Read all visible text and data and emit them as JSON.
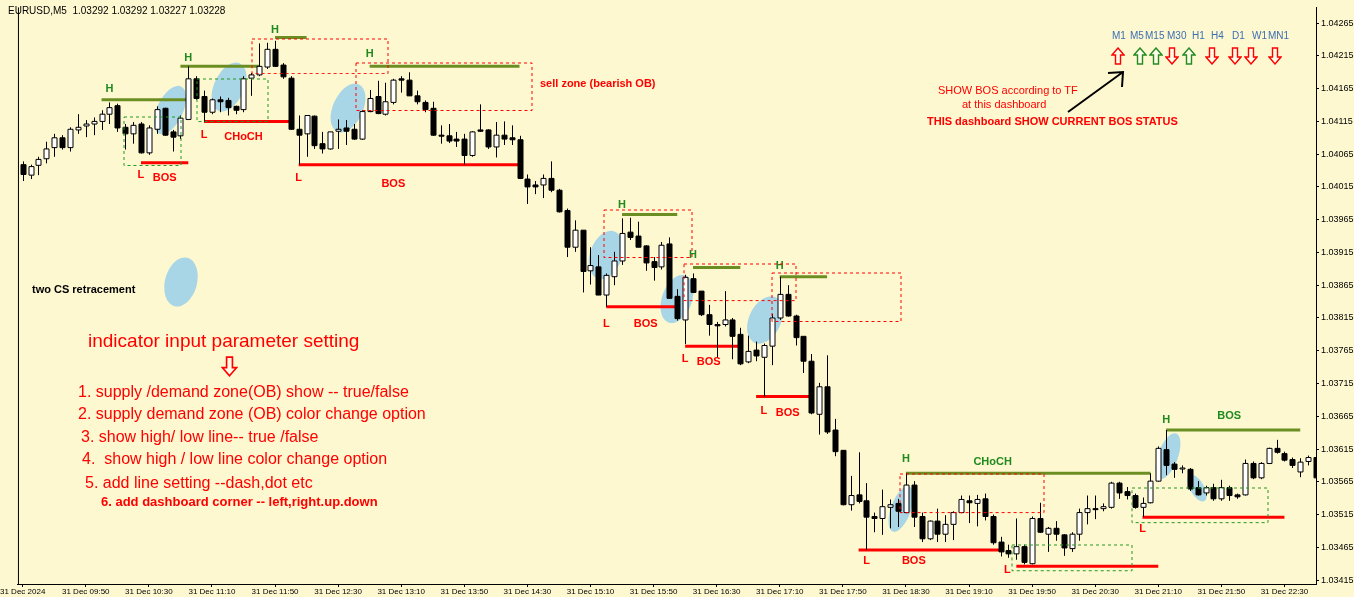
{
  "chart_data": {
    "type": "candlestick",
    "title": "EURUSD,M5  1.03292 1.03292 1.03227 1.03228",
    "x": [
      "2024-12-31T09:10",
      "2024-12-31T09:15",
      "2024-12-31T09:20",
      "2024-12-31T09:25",
      "2024-12-31T09:30",
      "2024-12-31T09:35",
      "2024-12-31T09:40",
      "2024-12-31T09:45",
      "2024-12-31T09:50",
      "2024-12-31T09:55",
      "2024-12-31T10:00",
      "2024-12-31T10:05",
      "2024-12-31T10:10",
      "2024-12-31T10:15",
      "2024-12-31T10:20",
      "2024-12-31T10:25",
      "2024-12-31T10:30",
      "2024-12-31T10:35",
      "2024-12-31T10:40",
      "2024-12-31T10:45",
      "2024-12-31T10:50",
      "2024-12-31T10:55",
      "2024-12-31T11:00",
      "2024-12-31T11:05",
      "2024-12-31T11:10",
      "2024-12-31T11:15",
      "2024-12-31T11:20",
      "2024-12-31T11:25",
      "2024-12-31T11:30",
      "2024-12-31T11:35",
      "2024-12-31T11:40",
      "2024-12-31T11:45",
      "2024-12-31T11:50",
      "2024-12-31T11:55",
      "2024-12-31T12:00",
      "2024-12-31T12:05",
      "2024-12-31T12:10",
      "2024-12-31T12:15",
      "2024-12-31T12:20",
      "2024-12-31T12:25",
      "2024-12-31T12:30",
      "2024-12-31T12:35",
      "2024-12-31T12:40",
      "2024-12-31T12:45",
      "2024-12-31T12:50",
      "2024-12-31T12:55",
      "2024-12-31T13:00",
      "2024-12-31T13:05",
      "2024-12-31T13:10",
      "2024-12-31T13:15",
      "2024-12-31T13:20",
      "2024-12-31T13:25",
      "2024-12-31T13:30",
      "2024-12-31T13:35",
      "2024-12-31T13:40",
      "2024-12-31T13:45",
      "2024-12-31T13:50",
      "2024-12-31T13:55",
      "2024-12-31T14:00",
      "2024-12-31T14:05",
      "2024-12-31T14:10",
      "2024-12-31T14:15",
      "2024-12-31T14:20",
      "2024-12-31T14:25",
      "2024-12-31T14:30",
      "2024-12-31T14:35",
      "2024-12-31T14:40",
      "2024-12-31T14:45",
      "2024-12-31T14:50",
      "2024-12-31T14:55",
      "2024-12-31T15:00",
      "2024-12-31T15:05",
      "2024-12-31T15:10",
      "2024-12-31T15:15",
      "2024-12-31T15:20",
      "2024-12-31T15:25",
      "2024-12-31T15:30",
      "2024-12-31T15:35",
      "2024-12-31T15:40",
      "2024-12-31T15:45",
      "2024-12-31T15:50",
      "2024-12-31T15:55",
      "2024-12-31T16:00",
      "2024-12-31T16:05",
      "2024-12-31T16:10",
      "2024-12-31T16:15",
      "2024-12-31T16:20",
      "2024-12-31T16:25",
      "2024-12-31T16:30",
      "2024-12-31T16:35",
      "2024-12-31T16:40",
      "2024-12-31T16:45",
      "2024-12-31T16:50",
      "2024-12-31T16:55",
      "2024-12-31T17:00",
      "2024-12-31T17:05",
      "2024-12-31T17:10",
      "2024-12-31T17:15",
      "2024-12-31T17:20",
      "2024-12-31T17:25",
      "2024-12-31T17:30",
      "2024-12-31T17:35",
      "2024-12-31T17:40",
      "2024-12-31T17:45",
      "2024-12-31T17:50",
      "2024-12-31T17:55",
      "2024-12-31T18:00",
      "2024-12-31T18:05",
      "2024-12-31T18:10",
      "2024-12-31T18:15",
      "2024-12-31T18:20",
      "2024-12-31T18:25",
      "2024-12-31T18:30",
      "2024-12-31T18:35",
      "2024-12-31T18:40",
      "2024-12-31T18:45",
      "2024-12-31T18:50",
      "2024-12-31T18:55",
      "2024-12-31T19:00",
      "2024-12-31T19:05",
      "2024-12-31T19:10",
      "2024-12-31T19:15",
      "2024-12-31T19:20",
      "2024-12-31T19:25",
      "2024-12-31T19:30",
      "2024-12-31T19:35",
      "2024-12-31T19:40",
      "2024-12-31T19:45",
      "2024-12-31T19:50",
      "2024-12-31T19:55",
      "2024-12-31T20:00",
      "2024-12-31T20:05",
      "2024-12-31T20:10",
      "2024-12-31T20:15",
      "2024-12-31T20:20",
      "2024-12-31T20:25",
      "2024-12-31T20:30",
      "2024-12-31T20:35",
      "2024-12-31T20:40",
      "2024-12-31T20:45",
      "2024-12-31T20:50",
      "2024-12-31T20:55",
      "2024-12-31T21:00",
      "2024-12-31T21:05",
      "2024-12-31T21:10",
      "2024-12-31T21:15",
      "2024-12-31T21:20",
      "2024-12-31T21:25",
      "2024-12-31T21:30",
      "2024-12-31T21:35",
      "2024-12-31T21:40",
      "2024-12-31T21:45",
      "2024-12-31T21:50",
      "2024-12-31T21:55",
      "2024-12-31T22:00",
      "2024-12-31T22:05",
      "2024-12-31T22:10",
      "2024-12-31T22:15",
      "2024-12-31T22:20",
      "2024-12-31T22:25",
      "2024-12-31T22:30",
      "2024-12-31T22:35",
      "2024-12-31T22:40",
      "2024-12-31T22:45",
      "2024-12-31T22:50"
    ],
    "ohlc": [
      [
        1.04049,
        1.04054,
        1.04024,
        1.04034
      ],
      [
        1.04033,
        1.04049,
        1.04027,
        1.04046
      ],
      [
        1.04048,
        1.04061,
        1.04033,
        1.04057
      ],
      [
        1.04058,
        1.04084,
        1.04051,
        1.04073
      ],
      [
        1.04075,
        1.04096,
        1.04061,
        1.0409
      ],
      [
        1.0409,
        1.04094,
        1.04072,
        1.04075
      ],
      [
        1.04075,
        1.04106,
        1.04069,
        1.04103
      ],
      [
        1.04102,
        1.04126,
        1.04096,
        1.04106
      ],
      [
        1.04108,
        1.04117,
        1.04091,
        1.04111
      ],
      [
        1.04111,
        1.04121,
        1.04094,
        1.04115
      ],
      [
        1.04115,
        1.04132,
        1.04102,
        1.04126
      ],
      [
        1.04126,
        1.04144,
        1.04111,
        1.04136
      ],
      [
        1.04139,
        1.04142,
        1.04099,
        1.04105
      ],
      [
        1.04106,
        1.04111,
        1.04072,
        1.04096
      ],
      [
        1.04096,
        1.04114,
        1.04081,
        1.04109
      ],
      [
        1.04111,
        1.04114,
        1.04066,
        1.04067
      ],
      [
        1.04067,
        1.04109,
        1.04064,
        1.04105
      ],
      [
        1.04103,
        1.04138,
        1.04096,
        1.04133
      ],
      [
        1.04135,
        1.04136,
        1.04093,
        1.04094
      ],
      [
        1.04099,
        1.04102,
        1.04069,
        1.04091
      ],
      [
        1.04093,
        1.04124,
        1.04088,
        1.0412
      ],
      [
        1.04118,
        1.04199,
        1.04117,
        1.0418
      ],
      [
        1.0418,
        1.04184,
        1.04148,
        1.0415
      ],
      [
        1.04153,
        1.04162,
        1.04114,
        1.04129
      ],
      [
        1.04129,
        1.0415,
        1.04126,
        1.04148
      ],
      [
        1.04148,
        1.04153,
        1.04129,
        1.04145
      ],
      [
        1.04147,
        1.04151,
        1.04124,
        1.04136
      ],
      [
        1.04138,
        1.04139,
        1.04126,
        1.04132
      ],
      [
        1.04133,
        1.04184,
        1.04129,
        1.0418
      ],
      [
        1.04181,
        1.04189,
        1.04154,
        1.04186
      ],
      [
        1.04186,
        1.04234,
        1.04184,
        1.04199
      ],
      [
        1.04198,
        1.04235,
        1.04195,
        1.04225
      ],
      [
        1.04225,
        1.04238,
        1.04198,
        1.04199
      ],
      [
        1.04201,
        1.04204,
        1.0418,
        1.04183
      ],
      [
        1.04181,
        1.04184,
        1.04102,
        1.04103
      ],
      [
        1.04103,
        1.04124,
        1.04049,
        1.04094
      ],
      [
        1.04096,
        1.04124,
        1.04061,
        1.04124
      ],
      [
        1.04123,
        1.04124,
        1.04073,
        1.04078
      ],
      [
        1.04081,
        1.04099,
        1.04066,
        1.04073
      ],
      [
        1.04073,
        1.04099,
        1.04072,
        1.04099
      ],
      [
        1.041,
        1.04118,
        1.04073,
        1.04103
      ],
      [
        1.04105,
        1.04117,
        1.04079,
        1.041
      ],
      [
        1.04103,
        1.04111,
        1.04087,
        1.04088
      ],
      [
        1.04088,
        1.04132,
        1.04087,
        1.0413
      ],
      [
        1.0413,
        1.04163,
        1.04129,
        1.0415
      ],
      [
        1.04153,
        1.04177,
        1.04126,
        1.04127
      ],
      [
        1.04126,
        1.04174,
        1.04124,
        1.04145
      ],
      [
        1.04144,
        1.0418,
        1.04141,
        1.04178
      ],
      [
        1.0418,
        1.04184,
        1.04159,
        1.04178
      ],
      [
        1.04178,
        1.0419,
        1.04154,
        1.04154
      ],
      [
        1.04154,
        1.04162,
        1.04141,
        1.04145
      ],
      [
        1.04144,
        1.04147,
        1.04129,
        1.04133
      ],
      [
        1.04135,
        1.04145,
        1.04093,
        1.04094
      ],
      [
        1.04094,
        1.04109,
        1.04081,
        1.04093
      ],
      [
        1.04093,
        1.04111,
        1.04082,
        1.04085
      ],
      [
        1.04088,
        1.04099,
        1.04076,
        1.04085
      ],
      [
        1.04088,
        1.04096,
        1.04049,
        1.04063
      ],
      [
        1.04063,
        1.041,
        1.04061,
        1.04099
      ],
      [
        1.04102,
        1.04141,
        1.04099,
        1.041
      ],
      [
        1.04102,
        1.04103,
        1.04073,
        1.04076
      ],
      [
        1.04076,
        1.04114,
        1.0406,
        1.04094
      ],
      [
        1.04094,
        1.04115,
        1.04079,
        1.04088
      ],
      [
        1.0409,
        1.04109,
        1.04079,
        1.04087
      ],
      [
        1.04087,
        1.04093,
        1.04027,
        1.04028
      ],
      [
        1.04027,
        1.04034,
        1.03989,
        1.04015
      ],
      [
        1.04018,
        1.04024,
        1.04004,
        1.04015
      ],
      [
        1.04018,
        1.04034,
        1.03998,
        1.04028
      ],
      [
        1.04028,
        1.04054,
        1.04007,
        1.0401
      ],
      [
        1.0401,
        1.04012,
        1.03976,
        1.03977
      ],
      [
        1.03979,
        1.03982,
        1.03908,
        1.03923
      ],
      [
        1.03923,
        1.03964,
        1.03916,
        1.03949
      ],
      [
        1.03949,
        1.03949,
        1.03854,
        1.03886
      ],
      [
        1.03887,
        1.03923,
        1.03866,
        1.03895
      ],
      [
        1.03893,
        1.03911,
        1.0385,
        1.0385
      ],
      [
        1.0385,
        1.03883,
        1.03832,
        1.0388
      ],
      [
        1.03878,
        1.03916,
        1.03865,
        1.03902
      ],
      [
        1.03902,
        1.03967,
        1.03896,
        1.03944
      ],
      [
        1.03946,
        1.03968,
        1.03934,
        1.03938
      ],
      [
        1.0394,
        1.03962,
        1.03923,
        1.03923
      ],
      [
        1.03925,
        1.03926,
        1.03887,
        1.03899
      ],
      [
        1.03901,
        1.03908,
        1.03872,
        1.03892
      ],
      [
        1.03893,
        1.03931,
        1.03889,
        1.03926
      ],
      [
        1.03928,
        1.03938,
        1.03844,
        1.03845
      ],
      [
        1.03848,
        1.03859,
        1.03811,
        1.03814
      ],
      [
        1.03812,
        1.03881,
        1.03775,
        1.03877
      ],
      [
        1.03875,
        1.03883,
        1.03853,
        1.03854
      ],
      [
        1.03856,
        1.03856,
        1.03818,
        1.0382
      ],
      [
        1.0382,
        1.03835,
        1.03788,
        1.03805
      ],
      [
        1.03805,
        1.03809,
        1.03754,
        1.03803
      ],
      [
        1.03805,
        1.03856,
        1.03802,
        1.03812
      ],
      [
        1.03812,
        1.03815,
        1.03752,
        1.03787
      ],
      [
        1.0379,
        1.038,
        1.03743,
        1.03745
      ],
      [
        1.03748,
        1.03788,
        1.03746,
        1.03764
      ],
      [
        1.03766,
        1.03779,
        1.03749,
        1.03757
      ],
      [
        1.03755,
        1.03776,
        1.03695,
        1.03773
      ],
      [
        1.03772,
        1.03821,
        1.03743,
        1.03815
      ],
      [
        1.03815,
        1.03878,
        1.03812,
        1.03851
      ],
      [
        1.03851,
        1.03865,
        1.03817,
        1.03818
      ],
      [
        1.03818,
        1.0382,
        1.03773,
        1.03785
      ],
      [
        1.03787,
        1.03787,
        1.03731,
        1.03749
      ],
      [
        1.03749,
        1.0376,
        1.03668,
        1.0367
      ],
      [
        1.03668,
        1.03716,
        1.03637,
        1.0371
      ],
      [
        1.0371,
        1.03758,
        1.03638,
        1.03641
      ],
      [
        1.03644,
        1.03661,
        1.03604,
        1.03611
      ],
      [
        1.03613,
        1.03613,
        1.03529,
        1.0353
      ],
      [
        1.0353,
        1.03574,
        1.03521,
        1.03544
      ],
      [
        1.03545,
        1.0361,
        1.03532,
        1.03535
      ],
      [
        1.03536,
        1.03563,
        1.03461,
        1.03511
      ],
      [
        1.03512,
        1.03518,
        1.03488,
        1.03509
      ],
      [
        1.03509,
        1.03553,
        1.03484,
        1.03527
      ],
      [
        1.03526,
        1.03538,
        1.03494,
        1.0353
      ],
      [
        1.03532,
        1.03539,
        1.03496,
        1.0352
      ],
      [
        1.03518,
        1.03578,
        1.03517,
        1.0356
      ],
      [
        1.0356,
        1.03566,
        1.03496,
        1.03511
      ],
      [
        1.03512,
        1.03518,
        1.03473,
        1.03478
      ],
      [
        1.03478,
        1.03506,
        1.03476,
        1.03505
      ],
      [
        1.03505,
        1.03524,
        1.03473,
        1.03485
      ],
      [
        1.03485,
        1.03514,
        1.03473,
        1.035
      ],
      [
        1.035,
        1.0352,
        1.03476,
        1.03518
      ],
      [
        1.03518,
        1.03544,
        1.03517,
        1.03538
      ],
      [
        1.03536,
        1.03544,
        1.03502,
        1.03533
      ],
      [
        1.03532,
        1.03545,
        1.03497,
        1.03538
      ],
      [
        1.03539,
        1.03547,
        1.03506,
        1.03512
      ],
      [
        1.03512,
        1.03515,
        1.03469,
        1.03472
      ],
      [
        1.03473,
        1.03481,
        1.03451,
        1.03458
      ],
      [
        1.0346,
        1.03469,
        1.03449,
        1.03455
      ],
      [
        1.03455,
        1.03509,
        1.03446,
        1.03466
      ],
      [
        1.03466,
        1.03469,
        1.03439,
        1.03442
      ],
      [
        1.0344,
        1.03512,
        1.03439,
        1.03509
      ],
      [
        1.03509,
        1.03533,
        1.03487,
        1.03488
      ],
      [
        1.03485,
        1.03496,
        1.03458,
        1.03494
      ],
      [
        1.03494,
        1.03505,
        1.03475,
        1.03485
      ],
      [
        1.03484,
        1.03485,
        1.03452,
        1.03464
      ],
      [
        1.03463,
        1.03488,
        1.03458,
        1.03485
      ],
      [
        1.03485,
        1.03524,
        1.03475,
        1.03518
      ],
      [
        1.03518,
        1.03544,
        1.035,
        1.03524
      ],
      [
        1.03524,
        1.03544,
        1.03508,
        1.03523
      ],
      [
        1.03524,
        1.03532,
        1.0352,
        1.03527
      ],
      [
        1.03526,
        1.03565,
        1.03524,
        1.03563
      ],
      [
        1.03563,
        1.03565,
        1.03539,
        1.03548
      ],
      [
        1.0355,
        1.03557,
        1.03538,
        1.03544
      ],
      [
        1.03544,
        1.03547,
        1.03524,
        1.03526
      ],
      [
        1.03526,
        1.03541,
        1.03511,
        1.03532
      ],
      [
        1.03533,
        1.03578,
        1.03532,
        1.03566
      ],
      [
        1.03566,
        1.03619,
        1.03565,
        1.03616
      ],
      [
        1.03614,
        1.03644,
        1.03575,
        1.0359
      ],
      [
        1.03592,
        1.03595,
        1.03571,
        1.03584
      ],
      [
        1.03586,
        1.0359,
        1.03578,
        1.03586
      ],
      [
        1.03584,
        1.03586,
        1.03551,
        1.03554
      ],
      [
        1.03556,
        1.03566,
        1.03544,
        1.03545
      ],
      [
        1.03548,
        1.03559,
        1.03544,
        1.03556
      ],
      [
        1.03556,
        1.03562,
        1.03536,
        1.03539
      ],
      [
        1.03539,
        1.03568,
        1.03536,
        1.03556
      ],
      [
        1.03556,
        1.03559,
        1.03536,
        1.03544
      ],
      [
        1.03545,
        1.03547,
        1.03539,
        1.03542
      ],
      [
        1.03545,
        1.03599,
        1.03544,
        1.03593
      ],
      [
        1.03593,
        1.03596,
        1.03569,
        1.03571
      ],
      [
        1.03571,
        1.03595,
        1.03569,
        1.03593
      ],
      [
        1.03593,
        1.03617,
        1.03592,
        1.03616
      ],
      [
        1.03616,
        1.03629,
        1.03608,
        1.0361
      ],
      [
        1.03608,
        1.03611,
        1.03596,
        1.03598
      ],
      [
        1.03599,
        1.03602,
        1.03586,
        1.0359
      ],
      [
        1.0358,
        1.03601,
        1.03572,
        1.03595
      ],
      [
        1.03596,
        1.03605,
        1.0359,
        1.03602
      ],
      [
        1.03602,
        1.03605,
        1.03569,
        1.03571
      ]
    ],
    "series": [
      {
        "type": "line",
        "color": "#6b8e23",
        "x": [
          "2024-12-31T10:00",
          "2024-12-31T10:55"
        ],
        "values": [
          1.04148,
          1.04148
        ]
      },
      {
        "type": "line",
        "color": "#6b8e23",
        "x": [
          "2024-12-31T10:50",
          "2024-12-31T11:40"
        ],
        "values": [
          1.04199,
          1.04199
        ]
      },
      {
        "type": "line",
        "color": "#6b8e23",
        "x": [
          "2024-12-31T11:50",
          "2024-12-31T12:10"
        ],
        "values": [
          1.04243,
          1.04243
        ]
      },
      {
        "type": "line",
        "color": "#6b8e23",
        "x": [
          "2024-12-31T12:50",
          "2024-12-31T14:25"
        ],
        "values": [
          1.04199,
          1.04199
        ]
      },
      {
        "type": "line",
        "color": "#6b8e23",
        "x": [
          "2024-12-31T15:30",
          "2024-12-31T16:05"
        ],
        "values": [
          1.03973,
          1.03973
        ]
      },
      {
        "type": "line",
        "color": "#6b8e23",
        "x": [
          "2024-12-31T16:15",
          "2024-12-31T16:45"
        ],
        "values": [
          1.03892,
          1.03892
        ]
      },
      {
        "type": "line",
        "color": "#6b8e23",
        "x": [
          "2024-12-31T17:10",
          "2024-12-31T17:40"
        ],
        "values": [
          1.03878,
          1.03878
        ]
      },
      {
        "type": "line",
        "color": "#6b8e23",
        "x": [
          "2024-12-31T18:30",
          "2024-12-31T21:05"
        ],
        "values": [
          1.03578,
          1.03578
        ]
      },
      {
        "type": "line",
        "color": "#6b8e23",
        "x": [
          "2024-12-31T21:15",
          "2024-12-31T22:40"
        ],
        "values": [
          1.03644,
          1.03644
        ]
      },
      {
        "type": "line",
        "color": "#ff0000",
        "x": [
          "2024-12-31T10:25",
          "2024-12-31T10:55"
        ],
        "values": [
          1.04052,
          1.04052
        ]
      },
      {
        "type": "line",
        "color": "#ff0000",
        "x": [
          "2024-12-31T11:05",
          "2024-12-31T12:00"
        ],
        "values": [
          1.04115,
          1.04115
        ]
      },
      {
        "type": "line",
        "color": "#ff0000",
        "x": [
          "2024-12-31T12:05",
          "2024-12-31T14:25"
        ],
        "values": [
          1.04049,
          1.04049
        ]
      },
      {
        "type": "line",
        "color": "#ff0000",
        "x": [
          "2024-12-31T15:20",
          "2024-12-31T16:05"
        ],
        "values": [
          1.03832,
          1.03832
        ]
      },
      {
        "type": "line",
        "color": "#ff0000",
        "x": [
          "2024-12-31T16:10",
          "2024-12-31T16:45"
        ],
        "values": [
          1.03772,
          1.03772
        ]
      },
      {
        "type": "line",
        "color": "#ff0000",
        "x": [
          "2024-12-31T16:55",
          "2024-12-31T17:30"
        ],
        "values": [
          1.03695,
          1.03695
        ]
      },
      {
        "type": "line",
        "color": "#ff0000",
        "x": [
          "2024-12-31T18:00",
          "2024-12-31T19:30"
        ],
        "values": [
          1.03461,
          1.03461
        ]
      },
      {
        "type": "line",
        "color": "#ff0000",
        "x": [
          "2024-12-31T19:40",
          "2024-12-31T21:10"
        ],
        "values": [
          1.03436,
          1.03436
        ]
      },
      {
        "type": "line",
        "color": "#ff0000",
        "x": [
          "2024-12-31T21:00",
          "2024-12-31T22:30"
        ],
        "values": [
          1.03511,
          1.03511
        ]
      }
    ],
    "annotations": [
      {
        "text": "H",
        "x": "2024-12-31T10:05",
        "y": 1.04148
      },
      {
        "text": "H",
        "x": "2024-12-31T10:55",
        "y": 1.04199
      },
      {
        "text": "H",
        "x": "2024-12-31T11:50",
        "y": 1.04243
      },
      {
        "text": "H",
        "x": "2024-12-31T12:50",
        "y": 1.04199
      },
      {
        "text": "H",
        "x": "2024-12-31T15:30",
        "y": 1.03973
      },
      {
        "text": "H",
        "x": "2024-12-31T16:15",
        "y": 1.03892
      },
      {
        "text": "H",
        "x": "2024-12-31T17:10",
        "y": 1.03878
      },
      {
        "text": "H",
        "x": "2024-12-31T18:30",
        "y": 1.03578
      },
      {
        "text": "H",
        "x": "2024-12-31T21:15",
        "y": 1.03644
      },
      {
        "text": "L",
        "x": "2024-12-31T10:25",
        "y": 1.04052
      },
      {
        "text": "L",
        "x": "2024-12-31T11:05",
        "y": 1.04115
      },
      {
        "text": "L",
        "x": "2024-12-31T12:05",
        "y": 1.04049
      },
      {
        "text": "L",
        "x": "2024-12-31T15:20",
        "y": 1.03832
      },
      {
        "text": "L",
        "x": "2024-12-31T16:10",
        "y": 1.03772
      },
      {
        "text": "L",
        "x": "2024-12-31T17:00",
        "y": 1.03695
      },
      {
        "text": "L",
        "x": "2024-12-31T18:05",
        "y": 1.03461
      },
      {
        "text": "L",
        "x": "2024-12-31T19:40",
        "y": 1.03436
      },
      {
        "text": "L",
        "x": "2024-12-31T21:00",
        "y": 1.03511
      },
      {
        "text": "BOS",
        "x": "2024-12-31T10:40",
        "y": 1.04052
      },
      {
        "text": "CHoCH",
        "x": "2024-12-31T11:30",
        "y": 1.04115
      },
      {
        "text": "BOS",
        "x": "2024-12-31T13:05",
        "y": 1.04049
      },
      {
        "text": "BOS",
        "x": "2024-12-31T15:45",
        "y": 1.03832
      },
      {
        "text": "BOS",
        "x": "2024-12-31T16:25",
        "y": 1.03772
      },
      {
        "text": "BOS",
        "x": "2024-12-31T17:15",
        "y": 1.03695
      },
      {
        "text": "BOS",
        "x": "2024-12-31T18:35",
        "y": 1.03461
      },
      {
        "text": "CHoCH",
        "x": "2024-12-31T19:25",
        "y": 1.03578
      },
      {
        "text": "BOS",
        "x": "2024-12-31T21:55",
        "y": 1.03644
      },
      "two CS retracement",
      "indicator input parameter setting",
      "1. supply /demand zone(OB) show -- true/false",
      "2. supply demand zone (OB) color change option",
      "3. show high/ low line-- true /false",
      "4.  show high / low line color change option",
      "5. add line setting --dash,dot etc",
      "6. add dashboard corner -- left,right.up.down",
      "SHOW BOS according to TF",
      "at this dashboard",
      "THIS dashboard SHOW CURRENT BOS STATUS",
      "M1",
      "M5",
      "M15",
      "M30",
      "H1",
      "H4",
      "D1",
      "W1",
      "MN1",
      "sell zone (bearish OB)"
    ],
    "xlim": [
      "2024-12-31T09:07",
      "2024-12-31T22:50"
    ],
    "xticks": [
      {
        "value": "2024-12-31T09:10",
        "label": "31 Dec 2024"
      },
      {
        "value": "2024-12-31T09:50",
        "label": "31 Dec 09:50"
      },
      {
        "value": "2024-12-31T10:30",
        "label": "31 Dec 10:30"
      },
      {
        "value": "2024-12-31T11:10",
        "label": "31 Dec 11:10"
      },
      {
        "value": "2024-12-31T11:50",
        "label": "31 Dec 11:50"
      },
      {
        "value": "2024-12-31T12:30",
        "label": "31 Dec 12:30"
      },
      {
        "value": "2024-12-31T13:10",
        "label": "31 Dec 13:10"
      },
      {
        "value": "2024-12-31T13:50",
        "label": "31 Dec 13:50"
      },
      {
        "value": "2024-12-31T14:30",
        "label": "31 Dec 14:30"
      },
      {
        "value": "2024-12-31T15:10",
        "label": "31 Dec 15:10"
      },
      {
        "value": "2024-12-31T15:50",
        "label": "31 Dec 15:50"
      },
      {
        "value": "2024-12-31T16:30",
        "label": "31 Dec 16:30"
      },
      {
        "value": "2024-12-31T17:10",
        "label": "31 Dec 17:10"
      },
      {
        "value": "2024-12-31T17:50",
        "label": "31 Dec 17:50"
      },
      {
        "value": "2024-12-31T18:30",
        "label": "31 Dec 18:30"
      },
      {
        "value": "2024-12-31T19:10",
        "label": "31 Dec 19:10"
      },
      {
        "value": "2024-12-31T19:50",
        "label": "31 Dec 19:50"
      },
      {
        "value": "2024-12-31T20:30",
        "label": "31 Dec 20:30"
      },
      {
        "value": "2024-12-31T21:10",
        "label": "31 Dec 21:10"
      },
      {
        "value": "2024-12-31T21:50",
        "label": "31 Dec 21:50"
      },
      {
        "value": "2024-12-31T22:30",
        "label": "31 Dec 22:30"
      }
    ],
    "ylim": [
      1.03409,
      1.04289
    ],
    "yticks": [
      1.04265,
      1.04215,
      1.04165,
      1.04115,
      1.04065,
      1.04015,
      1.03965,
      1.03915,
      1.03865,
      1.03815,
      1.03765,
      1.03715,
      1.03665,
      1.03615,
      1.03565,
      1.03515,
      1.03465,
      1.03415
    ],
    "marker": "none"
  }
}
